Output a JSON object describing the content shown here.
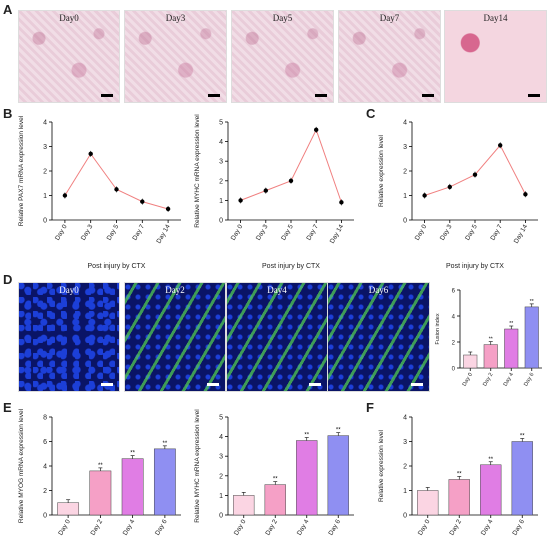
{
  "panels": {
    "A": {
      "letter": "A",
      "images": [
        "Day0",
        "Day3",
        "Day5",
        "Day7",
        "Day14"
      ]
    },
    "B": {
      "letter": "B"
    },
    "C": {
      "letter": "C"
    },
    "D": {
      "letter": "D",
      "images": [
        "Day0",
        "Day2",
        "Day4",
        "Day6"
      ]
    },
    "E": {
      "letter": "E"
    },
    "F": {
      "letter": "F"
    }
  },
  "chart_data": [
    {
      "id": "B1",
      "type": "line",
      "categories": [
        "Day 0",
        "Day 3",
        "Day 5",
        "Day 7",
        "Day 14"
      ],
      "values": [
        1.0,
        2.7,
        1.25,
        0.75,
        0.45
      ],
      "ylabel": "Relative PAX7 mRNA expression level",
      "xlabel": "Post injury by CTX",
      "ylim": [
        0,
        4
      ],
      "yticks": [
        "0",
        "1",
        "2",
        "3",
        "4"
      ],
      "line_color": "#f08080"
    },
    {
      "id": "B2",
      "type": "line",
      "categories": [
        "Day 0",
        "Day 3",
        "Day 5",
        "Day 7",
        "Day 14"
      ],
      "values": [
        1.0,
        1.5,
        2.0,
        4.6,
        0.9
      ],
      "ylabel": "Relative MYHC mRNA expression level",
      "xlabel": "Post injury by CTX",
      "ylim": [
        0,
        5
      ],
      "yticks": [
        "0",
        "1",
        "2",
        "3",
        "4",
        "5"
      ],
      "line_color": "#f08080"
    },
    {
      "id": "C",
      "type": "line",
      "categories": [
        "Day 0",
        "Day 3",
        "Day 5",
        "Day 7",
        "Day 14"
      ],
      "values": [
        1.0,
        1.35,
        1.85,
        3.05,
        1.05
      ],
      "ylabel": "Relative expression level",
      "xlabel": "Post injury by CTX",
      "ylim": [
        0,
        4
      ],
      "yticks": [
        "0",
        "1",
        "2",
        "3",
        "4"
      ],
      "line_color": "#f08080"
    },
    {
      "id": "D",
      "type": "bar",
      "categories": [
        "Day 0",
        "Day 2",
        "Day 4",
        "Day 6"
      ],
      "values": [
        1.0,
        1.8,
        3.0,
        4.7
      ],
      "labels": [
        "",
        "**",
        "**",
        "**"
      ],
      "ylabel": "Fusion index",
      "ylim": [
        0,
        6
      ],
      "yticks": [
        "0",
        "2",
        "4",
        "6"
      ],
      "colors": [
        "#fbd5e3",
        "#f5a0c6",
        "#e07de4",
        "#8f8ff2"
      ]
    },
    {
      "id": "E1",
      "type": "bar",
      "categories": [
        "Day 0",
        "Day 2",
        "Day 4",
        "Day 6"
      ],
      "values": [
        1.0,
        3.6,
        4.6,
        5.4
      ],
      "labels": [
        "",
        "**",
        "**",
        "**"
      ],
      "ylabel": "Relative MYOG mRNA expression level",
      "ylim": [
        0,
        8
      ],
      "yticks": [
        "0",
        "2",
        "4",
        "6",
        "8"
      ],
      "colors": [
        "#fbd5e3",
        "#f5a0c6",
        "#e07de4",
        "#8f8ff2"
      ]
    },
    {
      "id": "E2",
      "type": "bar",
      "categories": [
        "Day 0",
        "Day 2",
        "Day 4",
        "Day 6"
      ],
      "values": [
        1.0,
        1.55,
        3.8,
        4.05
      ],
      "labels": [
        "",
        "**",
        "**",
        "**"
      ],
      "ylabel": "Relative MYHC mRNA expression level",
      "ylim": [
        0,
        5
      ],
      "yticks": [
        "0",
        "1",
        "2",
        "3",
        "4",
        "5"
      ],
      "colors": [
        "#fbd5e3",
        "#f5a0c6",
        "#e07de4",
        "#8f8ff2"
      ]
    },
    {
      "id": "F",
      "type": "bar",
      "categories": [
        "Day 0",
        "Day 2",
        "Day 4",
        "Day 6"
      ],
      "values": [
        1.0,
        1.45,
        2.05,
        3.0
      ],
      "labels": [
        "",
        "**",
        "**",
        "**"
      ],
      "ylabel": "Relative expression level",
      "ylim": [
        0,
        4
      ],
      "yticks": [
        "0",
        "1",
        "2",
        "3",
        "4"
      ],
      "colors": [
        "#fbd5e3",
        "#f5a0c6",
        "#e07de4",
        "#8f8ff2"
      ]
    }
  ]
}
